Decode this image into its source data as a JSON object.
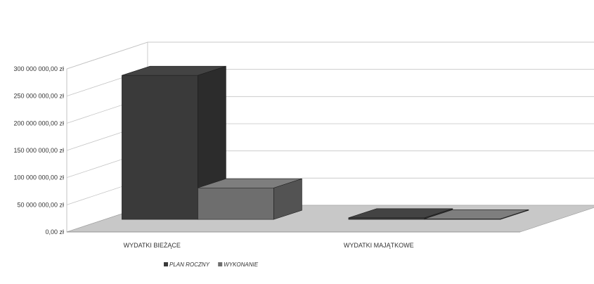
{
  "chart_data": {
    "type": "bar",
    "title": "",
    "xlabel": "",
    "ylabel": "",
    "categories": [
      "WYDATKI BIEŻĄCE",
      "WYDATKI MAJĄTKOWE"
    ],
    "series": [
      {
        "name": "PLAN ROCZNY",
        "values": [
          265000000,
          3000000
        ],
        "color": "#3a3a3a"
      },
      {
        "name": "WYKONANIE",
        "values": [
          58000000,
          1000000
        ],
        "color": "#6e6e6e"
      }
    ],
    "ylim": [
      0,
      300000000
    ],
    "yticks": [
      {
        "value": 0,
        "label": "0,00 zł"
      },
      {
        "value": 50000000,
        "label": "50 000 000,00 zł"
      },
      {
        "value": 100000000,
        "label": "100 000 000,00 zł"
      },
      {
        "value": 150000000,
        "label": "150 000 000,00 zł"
      },
      {
        "value": 200000000,
        "label": "200 000 000,00 zł"
      },
      {
        "value": 250000000,
        "label": "250 000 000,00 zł"
      },
      {
        "value": 300000000,
        "label": "300 000 000,00 zł"
      }
    ],
    "grid": true,
    "three_d": true,
    "legend_position": "bottom",
    "floor_color": "#c8c8c8"
  }
}
